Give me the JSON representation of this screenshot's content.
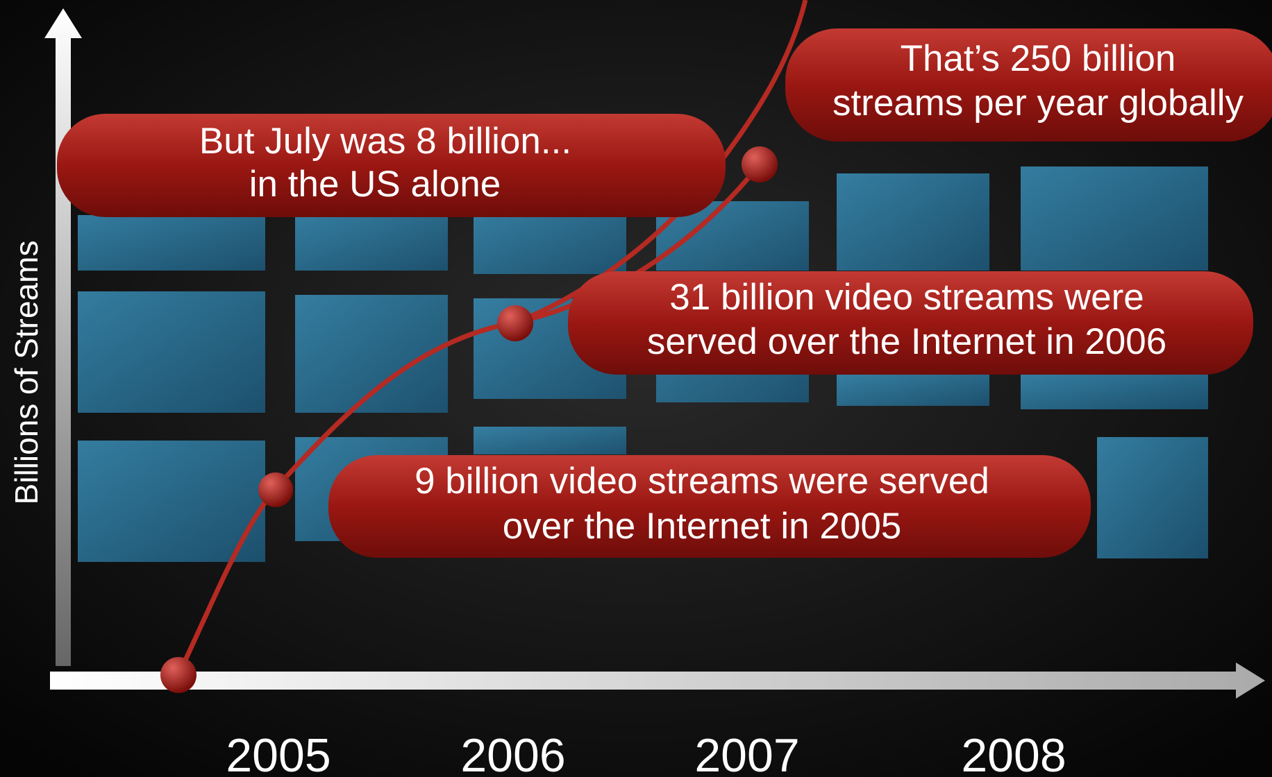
{
  "axis": {
    "y_label": "Billions of Streams",
    "x_labels": [
      "2005",
      "2006",
      "2007",
      "2008"
    ]
  },
  "callouts": [
    {
      "lines": [
        "But July was 8 billion...",
        "in the US alone"
      ]
    },
    {
      "lines": [
        "That’s 250 billion",
        "streams per year globally"
      ]
    },
    {
      "lines": [
        "31 billion video streams were",
        "served over the Internet in 2006"
      ]
    },
    {
      "lines": [
        "9 billion video streams were served",
        "over the Internet in 2005"
      ]
    }
  ]
}
